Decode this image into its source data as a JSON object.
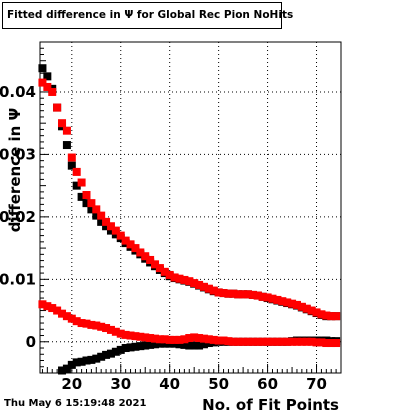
{
  "title": "Fitted difference in Ψ  for Global Rec Pion NoHits",
  "timestamp": "Thu May  6 15:19:48 2021",
  "colors": {
    "series_black": "#000000",
    "series_red": "#ff0000",
    "grid": "#000000"
  },
  "chart_data": {
    "type": "scatter",
    "title": "Fitted difference in Ψ  for Global Rec Pion NoHits",
    "xlabel": "No. of Fit Points",
    "ylabel": "difference in  Ψ",
    "xlim": [
      13.5,
      75
    ],
    "ylim": [
      -0.005,
      0.048
    ],
    "grid": true,
    "xticks": [
      20,
      30,
      40,
      50,
      60,
      70
    ],
    "yticks": [
      0,
      0.01,
      0.02,
      0.03,
      0.04
    ],
    "ytick_labels": [
      "0",
      "0.01",
      "0.02",
      "0.03",
      "0.04"
    ],
    "series": [
      {
        "color": "#000000",
        "marker": "square",
        "x": [
          14,
          15,
          16,
          17,
          18,
          19,
          20,
          21,
          22,
          23,
          24,
          25,
          26,
          27,
          28,
          29,
          30,
          31,
          32,
          33,
          34,
          35,
          36,
          37,
          38,
          39,
          40,
          41,
          42,
          43,
          44,
          45,
          46,
          47,
          48,
          49,
          50,
          51,
          52,
          53,
          54,
          55,
          56,
          57,
          58,
          59,
          60,
          61,
          62,
          63,
          64,
          65,
          66,
          67,
          68,
          69,
          70,
          71,
          72,
          73,
          74
        ],
        "y": [
          0.0438,
          0.0425,
          0.0405,
          0.0375,
          0.0345,
          0.0315,
          0.0282,
          0.025,
          0.0232,
          0.0222,
          0.0212,
          0.0202,
          0.0192,
          0.0185,
          0.0178,
          0.0172,
          0.0166,
          0.0158,
          0.0152,
          0.0146,
          0.014,
          0.0133,
          0.0127,
          0.0121,
          0.0115,
          0.011,
          0.0105,
          0.0102,
          0.01,
          0.0098,
          0.0096,
          0.0093,
          0.009,
          0.0087,
          0.0084,
          0.0081,
          0.0079,
          0.0078,
          0.0077,
          0.0077,
          0.0076,
          0.0076,
          0.0076,
          0.0075,
          0.0074,
          0.0072,
          0.007,
          0.0068,
          0.0066,
          0.0064,
          0.0062,
          0.006,
          0.0058,
          0.0055,
          0.0052,
          0.0049,
          0.0046,
          0.0043,
          0.0041,
          0.0041,
          0.0041
        ]
      },
      {
        "color": "#ff0000",
        "marker": "square",
        "x": [
          14,
          15,
          16,
          17,
          18,
          19,
          20,
          21,
          22,
          23,
          24,
          25,
          26,
          27,
          28,
          29,
          30,
          31,
          32,
          33,
          34,
          35,
          36,
          37,
          38,
          39,
          40,
          41,
          42,
          43,
          44,
          45,
          46,
          47,
          48,
          49,
          50,
          51,
          52,
          53,
          54,
          55,
          56,
          57,
          58,
          59,
          60,
          61,
          62,
          63,
          64,
          65,
          66,
          67,
          68,
          69,
          70,
          71,
          72,
          73,
          74
        ],
        "y": [
          0.0415,
          0.0408,
          0.04,
          0.0375,
          0.035,
          0.0338,
          0.0295,
          0.0272,
          0.0255,
          0.0235,
          0.0222,
          0.0212,
          0.0202,
          0.0192,
          0.0185,
          0.0178,
          0.017,
          0.0162,
          0.0156,
          0.015,
          0.0143,
          0.0137,
          0.0131,
          0.0124,
          0.0118,
          0.0112,
          0.0107,
          0.0103,
          0.0101,
          0.0099,
          0.0097,
          0.0094,
          0.0091,
          0.0088,
          0.0085,
          0.0082,
          0.0079,
          0.0078,
          0.0077,
          0.0077,
          0.0076,
          0.0076,
          0.0076,
          0.0075,
          0.0074,
          0.0072,
          0.0071,
          0.0069,
          0.0067,
          0.0065,
          0.0063,
          0.0061,
          0.0059,
          0.0056,
          0.0053,
          0.005,
          0.0047,
          0.0044,
          0.0042,
          0.0041,
          0.0041
        ]
      },
      {
        "color": "#000000",
        "marker": "square",
        "x": [
          18,
          19,
          20,
          21,
          22,
          23,
          24,
          25,
          26,
          27,
          28,
          29,
          30,
          31,
          32,
          33,
          34,
          35,
          36,
          37,
          38,
          39,
          40,
          41,
          42,
          43,
          44,
          45,
          46,
          47,
          48,
          49,
          50,
          51,
          52,
          53,
          54,
          55,
          56,
          57,
          58,
          59,
          60,
          61,
          62,
          63,
          64,
          65,
          66,
          67,
          68,
          69,
          70,
          71,
          72,
          73,
          74
        ],
        "y": [
          -0.0046,
          -0.0043,
          -0.0037,
          -0.0033,
          -0.0032,
          -0.003,
          -0.0029,
          -0.0027,
          -0.0024,
          -0.0021,
          -0.0019,
          -0.0016,
          -0.0013,
          -0.001,
          -0.0009,
          -0.0008,
          -0.0007,
          -0.0006,
          -0.0005,
          -0.0004,
          -0.0003,
          -0.0003,
          -0.0003,
          -0.0003,
          -0.0004,
          -0.0005,
          -0.0006,
          -0.0006,
          -0.0006,
          -0.0004,
          -0.0002,
          -0.0001,
          0,
          0,
          0,
          0,
          0,
          0,
          0,
          0,
          0,
          0,
          0,
          0,
          0,
          0,
          0,
          0.0001,
          0.0002,
          0.0002,
          0.0002,
          0.0002,
          0.0002,
          0.0002,
          0.0002,
          0.0001,
          0.0001
        ]
      },
      {
        "color": "#ff0000",
        "marker": "square",
        "x": [
          14,
          15,
          16,
          17,
          18,
          19,
          20,
          21,
          22,
          23,
          24,
          25,
          26,
          27,
          28,
          29,
          30,
          31,
          32,
          33,
          34,
          35,
          36,
          37,
          38,
          39,
          40,
          41,
          42,
          43,
          44,
          45,
          46,
          47,
          48,
          49,
          50,
          51,
          52,
          53,
          54,
          55,
          56,
          57,
          58,
          59,
          60,
          61,
          62,
          63,
          64,
          65,
          66,
          67,
          68,
          69,
          70,
          71,
          72,
          73,
          74
        ],
        "y": [
          0.006,
          0.0057,
          0.0054,
          0.005,
          0.0045,
          0.0041,
          0.0037,
          0.0033,
          0.003,
          0.0029,
          0.0027,
          0.0026,
          0.0024,
          0.0022,
          0.0019,
          0.0016,
          0.0013,
          0.0011,
          0.001,
          0.0009,
          0.0008,
          0.0007,
          0.0006,
          0.0005,
          0.0004,
          0.0004,
          0.0003,
          0.0003,
          0.0003,
          0.0004,
          0.0006,
          0.0007,
          0.0006,
          0.0005,
          0.0004,
          0.0003,
          0.0002,
          0.0002,
          0.0001,
          0,
          0,
          0,
          0,
          0,
          0,
          0,
          0,
          0,
          0,
          0,
          0,
          0,
          0,
          0,
          0,
          0,
          -0.0001,
          -0.0001,
          -0.0002,
          -0.0002,
          -0.0002
        ]
      }
    ]
  }
}
